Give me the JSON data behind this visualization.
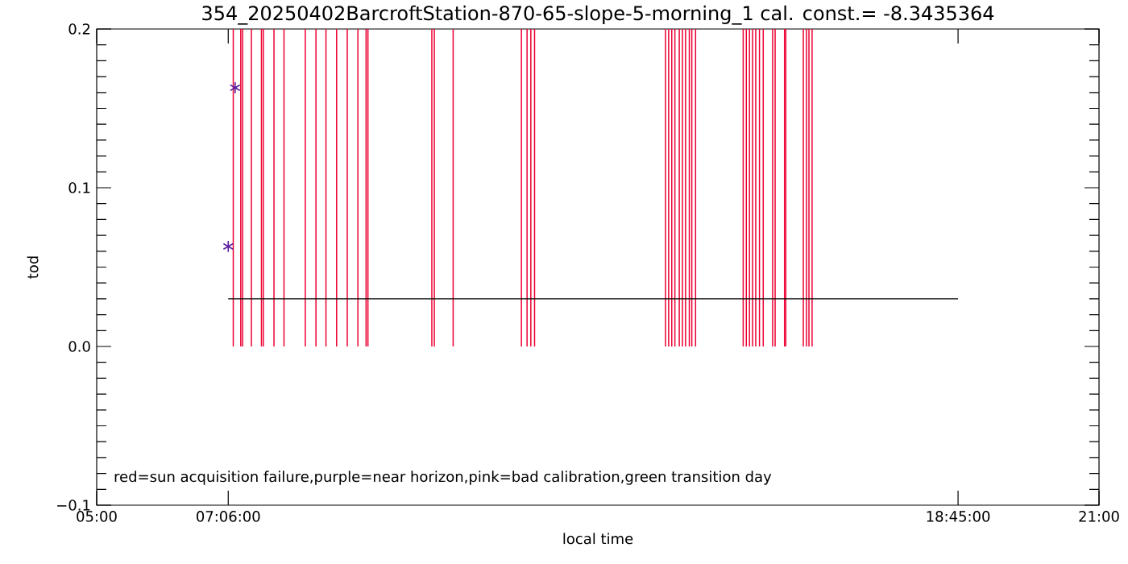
{
  "chart_data": {
    "type": "bar",
    "title": "354_20250402BarcroftStation-870-65-slope-5-morning_1 cal. const.= -8.3435364",
    "xlabel": "local time",
    "ylabel": "tod",
    "xlim": [
      5,
      21
    ],
    "xticks": [
      {
        "value": 5,
        "label": "05:00"
      },
      {
        "value": 7.1,
        "label": "07:06:00"
      },
      {
        "value": 18.75,
        "label": "18:45:00"
      },
      {
        "value": 21,
        "label": "21:00"
      }
    ],
    "ylim": [
      -0.1,
      0.2
    ],
    "yticks": [
      {
        "value": -0.1,
        "label": "−0.1"
      },
      {
        "value": 0,
        "label": "0.0"
      },
      0.1,
      0.2
    ],
    "series": [
      {
        "color": "#ec0033",
        "x": [
          7.18,
          7.3,
          7.33,
          7.47,
          7.63,
          7.66,
          7.83,
          7.99,
          8.33,
          8.5,
          8.66,
          8.83,
          9.0,
          9.17,
          9.3,
          9.33,
          10.35,
          10.39,
          10.69,
          11.78,
          11.87,
          11.93,
          11.99,
          14.08,
          14.13,
          14.18,
          14.23,
          14.3,
          14.35,
          14.4,
          14.46,
          14.5,
          14.56,
          15.32,
          15.37,
          15.42,
          15.47,
          15.52,
          15.58,
          15.64,
          15.79,
          15.83,
          15.98,
          16.0,
          16.28,
          16.33,
          16.37,
          16.42
        ],
        "values": [
          0.2,
          0.2,
          0.2,
          0.2,
          0.2,
          0.2,
          0.2,
          0.2,
          0.2,
          0.2,
          0.2,
          0.2,
          0.2,
          0.2,
          0.2,
          0.2,
          0.2,
          0.2,
          0.2,
          0.2,
          0.2,
          0.2,
          0.2,
          0.2,
          0.2,
          0.2,
          0.2,
          0.2,
          0.2,
          0.2,
          0.2,
          0.2,
          0.2,
          0.2,
          0.2,
          0.2,
          0.2,
          0.2,
          0.2,
          0.2,
          0.2,
          0.2,
          0.2,
          0.2,
          0.2,
          0.2,
          0.2,
          0.2
        ]
      },
      {
        "type": "line",
        "color": "#000000",
        "line_style": "solid",
        "x": [
          7.1,
          18.75
        ],
        "values": [
          0.03,
          0.03
        ]
      },
      {
        "type": "scatter",
        "color": "#5b1f9e",
        "marker": "cross",
        "x": [
          7.1,
          7.21
        ],
        "values": [
          0.063,
          0.163
        ]
      }
    ],
    "annotations": [
      "red=sun acquisition failure,purple=near horizon,pink=bad calibration,green transition day"
    ]
  }
}
